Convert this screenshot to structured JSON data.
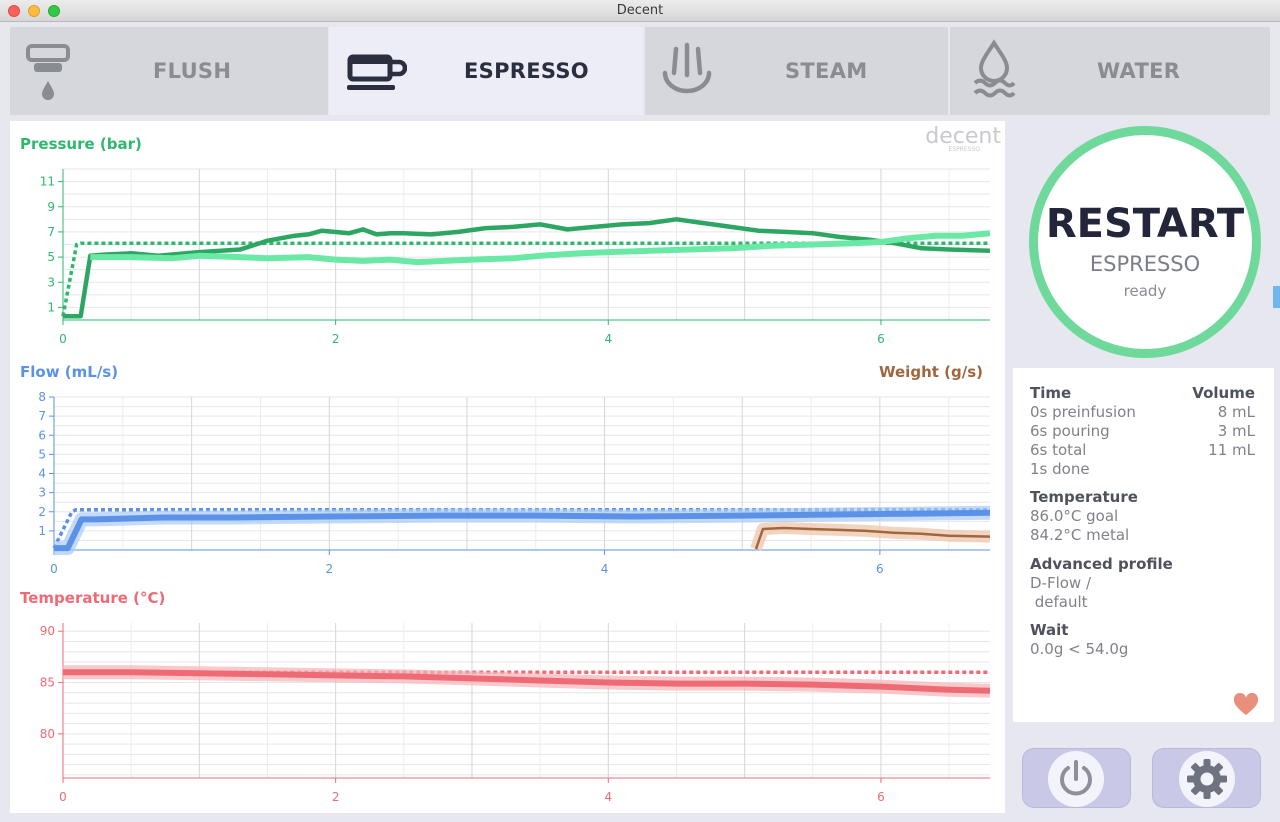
{
  "window": {
    "title": "Decent"
  },
  "tabs": [
    {
      "label": "FLUSH",
      "icon": "group-head-icon"
    },
    {
      "label": "ESPRESSO",
      "icon": "coffee-cup-icon"
    },
    {
      "label": "STEAM",
      "icon": "steam-icon"
    },
    {
      "label": "WATER",
      "icon": "water-drop-icon"
    }
  ],
  "brand": {
    "logo_text": "decent",
    "logo_sub": "ESPRESSO"
  },
  "colors": {
    "pressure": "#2eb86e",
    "flow": "#5b92e8",
    "weight": "#a0673e",
    "temperature": "#ee6b75",
    "accent_ring": "#6fd99b"
  },
  "restart": {
    "title": "RESTART",
    "subtitle": "ESPRESSO",
    "status": "ready"
  },
  "info": {
    "time_heading": "Time",
    "volume_heading": "Volume",
    "rows": [
      {
        "time": "0s preinfusion",
        "volume": "8 mL"
      },
      {
        "time": "6s pouring",
        "volume": "3 mL"
      },
      {
        "time": "6s total",
        "volume": "11 mL"
      },
      {
        "time": "1s done",
        "volume": ""
      }
    ],
    "temperature_heading": "Temperature",
    "temperature_goal": "86.0°C goal",
    "temperature_metal": "84.2°C metal",
    "profile_heading": "Advanced profile",
    "profile_line1": "D-Flow /",
    "profile_line2": " default",
    "wait_heading": "Wait",
    "wait_value": "0.0g < 54.0g"
  },
  "buttons": {
    "power_icon": "power-icon",
    "settings_icon": "gear-icon",
    "favorite_icon": "heart-icon"
  },
  "chart_data": [
    {
      "type": "line",
      "title": "Pressure (bar)",
      "xlim": [
        0,
        6.8
      ],
      "ylim": [
        0,
        12
      ],
      "y_ticks": [
        1,
        3,
        5,
        7,
        9,
        11
      ],
      "x_ticks": [
        0,
        2,
        4,
        6
      ],
      "series": [
        {
          "role": "goal",
          "style": "dotted",
          "x": [
            0,
            0.1,
            0.13,
            6.8
          ],
          "y": [
            0.3,
            6.0,
            6.1,
            6.1
          ]
        },
        {
          "role": "actual",
          "x": [
            0,
            0.13,
            0.2,
            0.3,
            0.5,
            0.7,
            1.0,
            1.3,
            1.5,
            1.7,
            1.8,
            1.9,
            2.1,
            2.2,
            2.3,
            2.4,
            2.5,
            2.7,
            2.9,
            3.1,
            3.3,
            3.5,
            3.7,
            3.9,
            4.1,
            4.3,
            4.5,
            4.7,
            4.9,
            5.1,
            5.3,
            5.5,
            5.7,
            5.9,
            6.1,
            6.3,
            6.5,
            6.8
          ],
          "y": [
            0.3,
            0.3,
            5.1,
            5.2,
            5.3,
            5.1,
            5.4,
            5.6,
            6.3,
            6.7,
            6.8,
            7.1,
            6.9,
            7.2,
            6.8,
            6.9,
            6.9,
            6.8,
            7.0,
            7.3,
            7.4,
            7.6,
            7.2,
            7.4,
            7.6,
            7.7,
            8.0,
            7.7,
            7.4,
            7.1,
            7.0,
            6.9,
            6.6,
            6.4,
            6.1,
            5.7,
            5.6,
            5.5
          ]
        },
        {
          "role": "reference",
          "x": [
            0.2,
            0.5,
            0.8,
            1.0,
            1.3,
            1.5,
            1.8,
            2.0,
            2.2,
            2.4,
            2.6,
            2.8,
            3.0,
            3.3,
            3.5,
            3.8,
            4.0,
            4.3,
            4.6,
            4.9,
            5.2,
            5.5,
            5.8,
            6.0,
            6.2,
            6.4,
            6.6,
            6.8
          ],
          "y": [
            5.0,
            5.0,
            4.9,
            5.1,
            5.0,
            4.9,
            5.0,
            4.8,
            4.7,
            4.8,
            4.6,
            4.7,
            4.8,
            4.9,
            5.1,
            5.3,
            5.4,
            5.5,
            5.6,
            5.7,
            5.9,
            6.0,
            6.1,
            6.2,
            6.5,
            6.7,
            6.7,
            6.9
          ]
        }
      ]
    },
    {
      "type": "line",
      "title": "Flow (mL/s)",
      "secondary_title": "Weight (g/s)",
      "xlim": [
        0,
        6.8
      ],
      "ylim": [
        0,
        8
      ],
      "y_ticks": [
        1,
        2,
        3,
        4,
        5,
        6,
        7,
        8
      ],
      "x_ticks": [
        0,
        2,
        4,
        6
      ],
      "series": [
        {
          "role": "goal",
          "style": "dotted",
          "x": [
            0,
            0.13,
            0.16,
            6.8
          ],
          "y": [
            0.1,
            2.0,
            2.1,
            2.1
          ]
        },
        {
          "role": "actual",
          "x": [
            0,
            0.1,
            0.2,
            0.3,
            0.8,
            1.3,
            2.0,
            2.8,
            3.5,
            4.2,
            5.0,
            5.6,
            6.2,
            6.8
          ],
          "y": [
            0.1,
            0.1,
            1.6,
            1.6,
            1.7,
            1.7,
            1.75,
            1.8,
            1.8,
            1.75,
            1.8,
            1.85,
            1.9,
            1.95
          ]
        },
        {
          "role": "weight",
          "x": [
            5.1,
            5.15,
            5.3,
            5.5,
            5.7,
            5.9,
            6.1,
            6.3,
            6.5,
            6.8
          ],
          "y": [
            0.05,
            1.1,
            1.15,
            1.1,
            1.05,
            1.0,
            0.9,
            0.85,
            0.75,
            0.7
          ]
        }
      ]
    },
    {
      "type": "line",
      "title": "Temperature (°C)",
      "xlim": [
        0,
        6.8
      ],
      "ylim": [
        75.7,
        90.8
      ],
      "y_ticks": [
        80,
        85,
        90
      ],
      "x_ticks": [
        0,
        2,
        4,
        6
      ],
      "series": [
        {
          "role": "goal",
          "style": "dotted",
          "x": [
            1.0,
            6.8
          ],
          "y": [
            86.0,
            86.0
          ]
        },
        {
          "role": "actual",
          "x": [
            0,
            0.5,
            1.0,
            1.5,
            2.0,
            2.5,
            3.0,
            3.5,
            4.0,
            4.5,
            5.0,
            5.5,
            6.0,
            6.5,
            6.8
          ],
          "y": [
            86.0,
            86.0,
            85.9,
            85.8,
            85.7,
            85.6,
            85.4,
            85.2,
            85.0,
            84.9,
            84.9,
            84.8,
            84.6,
            84.3,
            84.2
          ]
        }
      ]
    }
  ]
}
